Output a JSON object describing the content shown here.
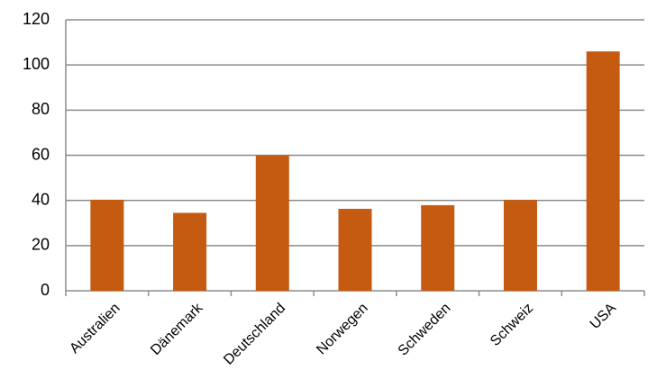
{
  "chart_data": {
    "type": "bar",
    "categories": [
      "Australien",
      "Dänemark",
      "Deutschland",
      "Norwegen",
      "Schweden",
      "Schweiz",
      "USA"
    ],
    "values": [
      40.3,
      34.5,
      60,
      36.3,
      37.9,
      40.2,
      106
    ],
    "color": "#c55a11",
    "ylim": [
      0,
      120
    ],
    "yticks": [
      0,
      20,
      40,
      60,
      80,
      100,
      120
    ],
    "grid": true
  }
}
